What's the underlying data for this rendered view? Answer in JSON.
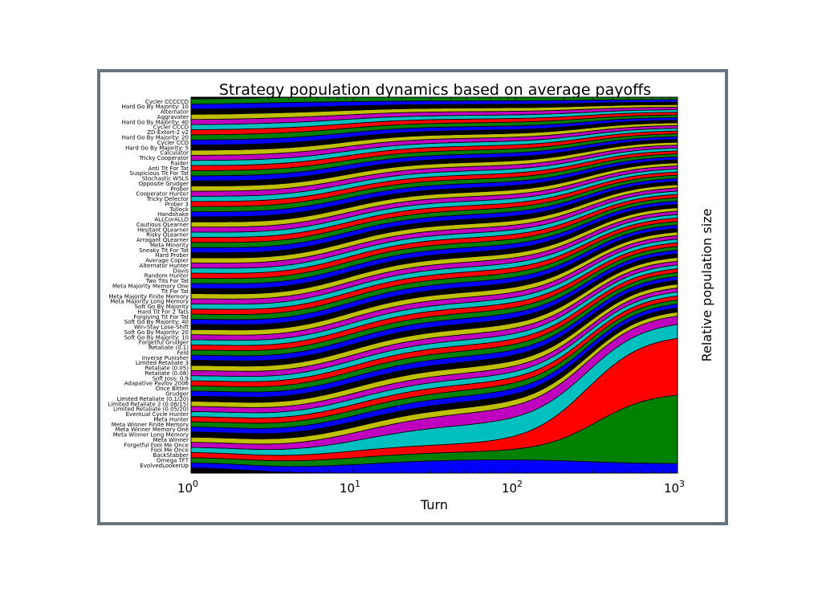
{
  "chart_data": {
    "type": "area",
    "title": "Strategy population dynamics based on average payoffs",
    "xlabel": "Turn",
    "ylabel": "Relative population size",
    "xscale": "log",
    "xlim": [
      1,
      1000
    ],
    "ylim": [
      0,
      1
    ],
    "grid": false,
    "x_ticks": [
      {
        "base": "10",
        "exp": "0"
      },
      {
        "base": "10",
        "exp": "1"
      },
      {
        "base": "10",
        "exp": "2"
      },
      {
        "base": "10",
        "exp": "3"
      }
    ],
    "colors": [
      "#0000ff",
      "#008000",
      "#ff0000",
      "#00bfbf",
      "#bf00bf",
      "#bfbf00",
      "#000000"
    ],
    "stack_edge_color": "#000000",
    "dense_region_color": "#000000",
    "series_labels_bottom_to_top": [
      "EvolvedLookerUp",
      "Omega TFT",
      "BackStabber",
      "Fool Me Once",
      "Forgetful Fool Me Once",
      "Meta Winner",
      "Meta Winner Long Memory",
      "Meta Winner Memory One",
      "Meta Winner Finite Memory",
      "Meta Hunter",
      "Eventual Cycle Hunter",
      "Limited Retaliate (0.05/20)",
      "Limited Retaliate 2 (0.08/15)",
      "Limited Retaliate (0.1/20)",
      "Grudger",
      "Once Bitten",
      "Adapative Pavlov 2006",
      "Soft Joss: 0.9",
      "Retaliate (0.08)",
      "Retaliate (0.05)",
      "Limited Retaliate 3",
      "Inverse Punisher",
      "Feld",
      "Retaliate (0.1)",
      "Forgetful Grudger",
      "Soft Go By Majority: 10",
      "Soft Go By Majority: 20",
      "Win-Stay Lose-Shift",
      "Soft Go By Majority: 40",
      "Forgiving Tit For Tat",
      "Hard Tit For 2 Tats",
      "Soft Go By Majority",
      "Meta Majority Long Memory",
      "Meta Majority Finite Memory",
      "Tit For Tat",
      "Meta Majority Memory One",
      "Two Tits For Tat",
      "Random Hunter",
      "Davis",
      "Alternator Hunter",
      "Average Copier",
      "Hard Prober",
      "Sneaky Tit For Tat",
      "Meta Minority",
      "Arrogant QLearner",
      "Risky QLearner",
      "Hesitant QLearner",
      "Cautious QLearner",
      "ALLCorALLD",
      "Handshake",
      "Tullock",
      "Prober 3",
      "Tricky Defector",
      "Cooperator Hunter",
      "Prober",
      "Opposite Grudger",
      "Stochastic WSLS",
      "Suspicious Tit For Tat",
      "Anti Tit For Tat",
      "Raider",
      "Tricky Cooperator",
      "Calculator",
      "Hard Go By Majority: 5",
      "Cycler CCD",
      "Hard Go By Majority: 20",
      "ZD-Extort-2 v2",
      "Cycler CCCD",
      "Hard Go By Majority: 40",
      "Aggravater",
      "Alternator",
      "Hard Go By Majority: 10",
      "Cycler CCCCCD"
    ],
    "final_shares_bottom_to_top_approx": [
      0.025,
      0.19,
      0.155,
      0.036,
      0.022
    ]
  }
}
